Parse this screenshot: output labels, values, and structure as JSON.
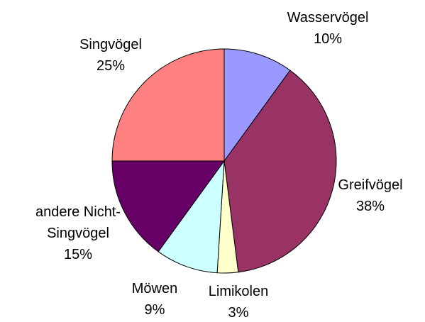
{
  "chart_data": {
    "type": "pie",
    "categories": [
      "Wasservögel",
      "Greifvögel",
      "Limikolen",
      "Möwen",
      "andere Nicht-Singvögel",
      "Singvögel"
    ],
    "values": [
      10,
      38,
      3,
      9,
      15,
      25
    ],
    "value_labels": [
      "10%",
      "38%",
      "3%",
      "9%",
      "15%",
      "25%"
    ],
    "colors": [
      "#9999ff",
      "#993366",
      "#ffffcc",
      "#ccffff",
      "#660066",
      "#ff8080"
    ]
  }
}
